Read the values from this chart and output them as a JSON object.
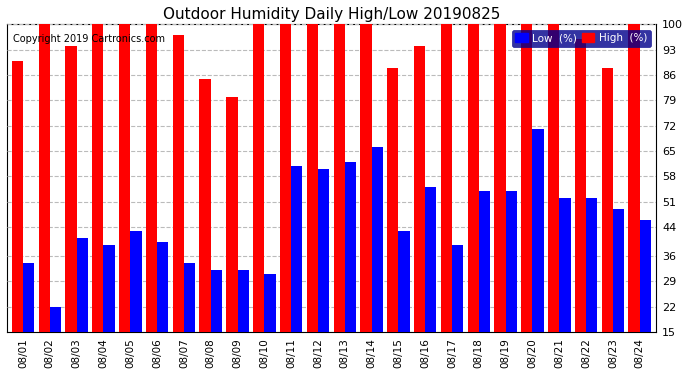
{
  "title": "Outdoor Humidity Daily High/Low 20190825",
  "copyright": "Copyright 2019 Cartronics.com",
  "dates": [
    "08/01",
    "08/02",
    "08/03",
    "08/04",
    "08/05",
    "08/06",
    "08/07",
    "08/08",
    "08/09",
    "08/10",
    "08/11",
    "08/12",
    "08/13",
    "08/14",
    "08/15",
    "08/16",
    "08/17",
    "08/18",
    "08/19",
    "08/20",
    "08/21",
    "08/22",
    "08/23",
    "08/24"
  ],
  "high": [
    90,
    100,
    94,
    100,
    100,
    100,
    97,
    85,
    80,
    100,
    100,
    100,
    100,
    100,
    88,
    94,
    100,
    100,
    100,
    100,
    100,
    96,
    88,
    100
  ],
  "low": [
    34,
    22,
    41,
    39,
    43,
    40,
    34,
    32,
    32,
    31,
    61,
    60,
    62,
    66,
    43,
    55,
    39,
    54,
    54,
    71,
    52,
    52,
    49,
    46
  ],
  "high_color": "#ff0000",
  "low_color": "#0000ff",
  "bg_color": "#ffffff",
  "plot_bg_color": "#ffffff",
  "grid_color": "#bbbbbb",
  "ylim_min": 15,
  "ylim_max": 100,
  "yticks": [
    15,
    22,
    29,
    36,
    44,
    51,
    58,
    65,
    72,
    79,
    86,
    93,
    100
  ],
  "bar_width": 0.42,
  "legend_low_label": "Low  (%)",
  "legend_high_label": "High  (%)",
  "title_fontsize": 11,
  "tick_fontsize": 8,
  "copyright_fontsize": 7
}
